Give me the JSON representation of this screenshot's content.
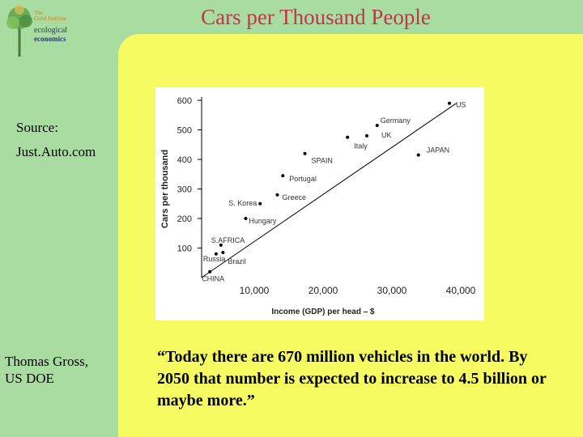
{
  "slide": {
    "title": "Cars per Thousand People",
    "source_label": "Source:",
    "source_value": "Just.Auto.com",
    "author_line1": "Thomas Gross,",
    "author_line2": "US DOE",
    "quote": "“Today there are 670 million vehicles in the world. By 2050 that number is expected to increase to 4.5 billion or maybe more.”"
  },
  "logo": {
    "line1": "The",
    "line2": "Gund Institute",
    "line3": "ecological",
    "line4": "economics"
  },
  "colors": {
    "background_green": "#a9dca0",
    "panel_yellow": "#f7fb62",
    "title_red": "#c0364b"
  },
  "chart_data": {
    "type": "scatter",
    "xlabel": "Income (GDP) per head – $",
    "ylabel": "Cars per thousand",
    "xlim": [
      0,
      40000
    ],
    "ylim": [
      0,
      600
    ],
    "x_ticks": [
      "10,000",
      "20,000",
      "30,000",
      "40,000"
    ],
    "y_ticks": [
      "100",
      "200",
      "300",
      "400",
      "500",
      "600"
    ],
    "grid": false,
    "trendline": true,
    "points": [
      {
        "label": "US",
        "x": 36000,
        "y": 590
      },
      {
        "label": "Germany",
        "x": 25500,
        "y": 515
      },
      {
        "label": "UK",
        "x": 24000,
        "y": 480
      },
      {
        "label": "Italy",
        "x": 21200,
        "y": 475
      },
      {
        "label": "JAPAN",
        "x": 31500,
        "y": 415
      },
      {
        "label": "SPAIN",
        "x": 15000,
        "y": 420
      },
      {
        "label": "Portugal",
        "x": 11800,
        "y": 345
      },
      {
        "label": "Greece",
        "x": 11000,
        "y": 280
      },
      {
        "label": "S. Korea",
        "x": 8500,
        "y": 250
      },
      {
        "label": "Hungary",
        "x": 6400,
        "y": 200
      },
      {
        "label": "S.AFRICA",
        "x": 2800,
        "y": 110
      },
      {
        "label": "Russia",
        "x": 2100,
        "y": 80
      },
      {
        "label": "Brazil",
        "x": 3100,
        "y": 85
      },
      {
        "label": "CHINA",
        "x": 1200,
        "y": 20
      }
    ]
  }
}
